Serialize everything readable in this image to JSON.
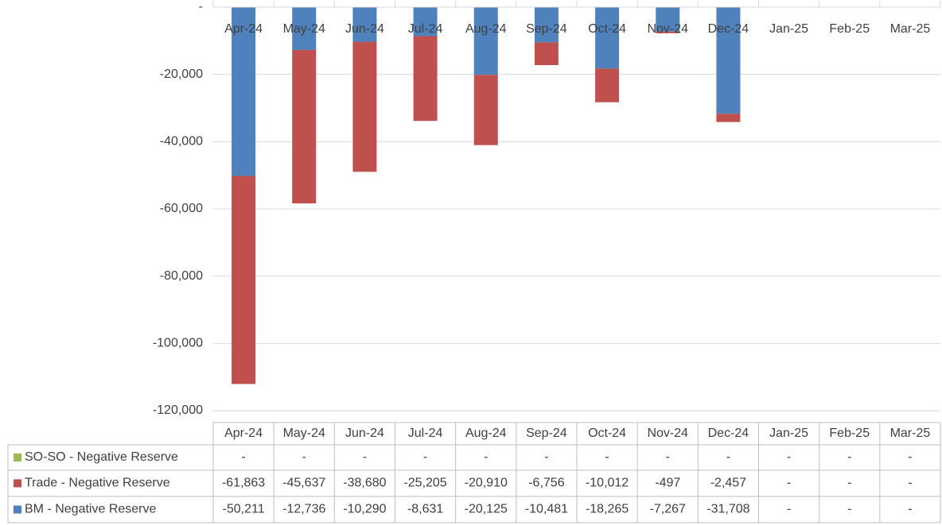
{
  "chart_data": {
    "type": "stacked-bar",
    "categories": [
      "Apr-24",
      "May-24",
      "Jun-24",
      "Jul-24",
      "Aug-24",
      "Sep-24",
      "Oct-24",
      "Nov-24",
      "Dec-24",
      "Jan-25",
      "Feb-25",
      "Mar-25"
    ],
    "series": [
      {
        "name": "SO-SO - Negative Reserve",
        "color": "#9bbb59",
        "values": [
          0,
          0,
          0,
          0,
          0,
          0,
          0,
          0,
          0,
          0,
          0,
          0
        ],
        "value_labels": [
          "-",
          "-",
          "-",
          "-",
          "-",
          "-",
          "-",
          "-",
          "-",
          "-",
          "-",
          "-"
        ]
      },
      {
        "name": "Trade - Negative Reserve",
        "color": "#c0504d",
        "values": [
          -61863,
          -45637,
          -38680,
          -25205,
          -20910,
          -6756,
          -10012,
          -497,
          -2457,
          0,
          0,
          0
        ],
        "value_labels": [
          "-61,863",
          "-45,637",
          "-38,680",
          "-25,205",
          "-20,910",
          "-6,756",
          "-10,012",
          "-497",
          "-2,457",
          "-",
          "-",
          "-"
        ]
      },
      {
        "name": "BM - Negative Reserve",
        "color": "#4f81bd",
        "values": [
          -50211,
          -12736,
          -10290,
          -8631,
          -20125,
          -10481,
          -18265,
          -7267,
          -31708,
          0,
          0,
          0
        ],
        "value_labels": [
          "-50,211",
          "-12,736",
          "-10,290",
          "-8,631",
          "-20,125",
          "-10,481",
          "-18,265",
          "-7,267",
          "-31,708",
          "-",
          "-",
          "-"
        ]
      }
    ],
    "ylim": [
      -120000,
      0
    ],
    "yticks": [
      {
        "value": 0,
        "label": "-"
      },
      {
        "value": -20000,
        "label": "-20,000"
      },
      {
        "value": -40000,
        "label": "-40,000"
      },
      {
        "value": -60000,
        "label": "-60,000"
      },
      {
        "value": -80000,
        "label": "-80,000"
      },
      {
        "value": -100000,
        "label": "-100,000"
      },
      {
        "value": -120000,
        "label": "-120,000"
      }
    ],
    "grid": true
  }
}
